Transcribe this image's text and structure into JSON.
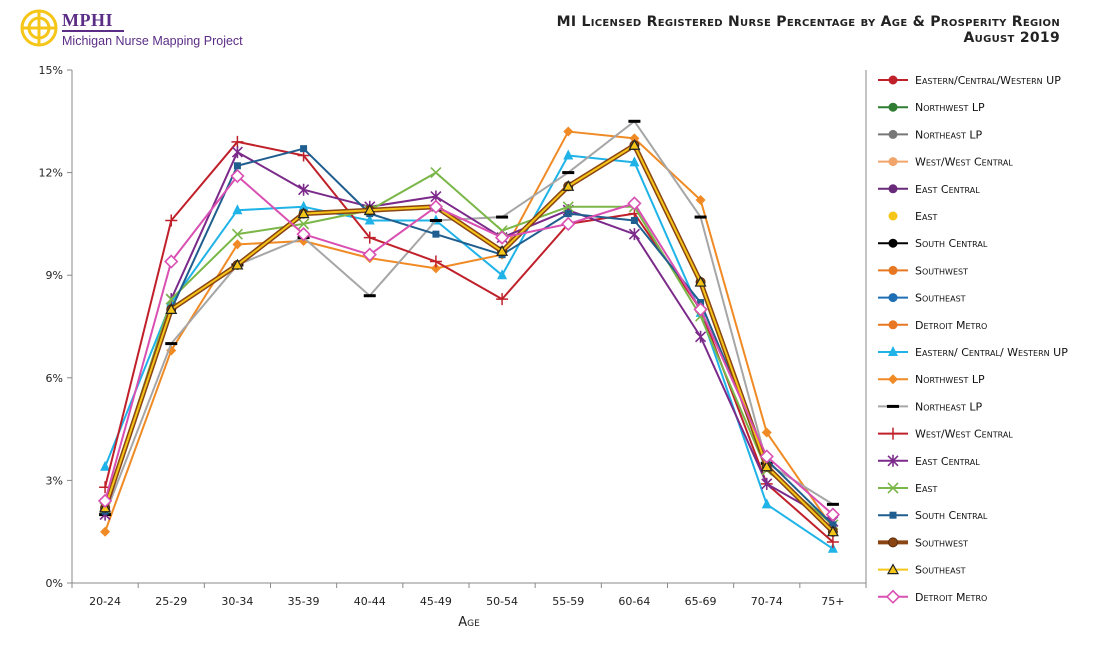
{
  "header": {
    "logo_abbr": "MPHI",
    "logo_full": "Michigan Nurse Mapping Project",
    "title_line1": "MI Licensed Registered Nurse Percentage by Age & Prosperity Region",
    "title_line2": "August 2019"
  },
  "chart_data": {
    "type": "line",
    "title": "MI Licensed Registered Nurse Percentage by Age & Prosperity Region",
    "subtitle": "August 2019",
    "xlabel": "Age",
    "ylabel": "",
    "categories": [
      "20-24",
      "25-29",
      "30-34",
      "35-39",
      "40-44",
      "45-49",
      "50-54",
      "55-59",
      "60-64",
      "65-69",
      "70-74",
      "75+"
    ],
    "ylim": [
      0,
      15
    ],
    "yticks": [
      "0%",
      "3%",
      "6%",
      "9%",
      "12%",
      "15%"
    ],
    "ytick_values": [
      0,
      3,
      6,
      9,
      12,
      15
    ],
    "grid": false,
    "legend_position": "right",
    "series": [
      {
        "name": "Eastern/Central/Western UP",
        "color": "#c0202a",
        "marker": "circle",
        "values": [
          null,
          null,
          null,
          null,
          null,
          null,
          null,
          null,
          null,
          null,
          null,
          null
        ]
      },
      {
        "name": "Northwest LP",
        "color": "#2e7d32",
        "marker": "circle",
        "values": [
          null,
          null,
          null,
          null,
          null,
          null,
          null,
          null,
          null,
          null,
          null,
          null
        ]
      },
      {
        "name": "Northeast LP",
        "color": "#777777",
        "marker": "circle",
        "values": [
          null,
          null,
          null,
          null,
          null,
          null,
          null,
          null,
          null,
          null,
          null,
          null
        ]
      },
      {
        "name": "West/West Central",
        "color": "#f2a56b",
        "marker": "circle",
        "values": [
          null,
          null,
          null,
          null,
          null,
          null,
          null,
          null,
          null,
          null,
          null,
          null
        ]
      },
      {
        "name": "East Central",
        "color": "#6a2a7a",
        "marker": "circle",
        "values": [
          null,
          null,
          null,
          null,
          null,
          null,
          null,
          null,
          null,
          null,
          null,
          null
        ]
      },
      {
        "name": "East",
        "color": "#f5c518",
        "marker": "dot",
        "values": [
          null,
          null,
          null,
          null,
          null,
          null,
          null,
          null,
          null,
          null,
          null,
          null
        ]
      },
      {
        "name": "South Central",
        "color": "#000000",
        "marker": "circle",
        "values": [
          null,
          null,
          null,
          null,
          null,
          null,
          null,
          null,
          null,
          null,
          null,
          null
        ]
      },
      {
        "name": "Southwest",
        "color": "#e87722",
        "marker": "circle",
        "values": [
          null,
          null,
          null,
          null,
          null,
          null,
          null,
          null,
          null,
          null,
          null,
          null
        ]
      },
      {
        "name": "Southeast",
        "color": "#1f6fb5",
        "marker": "circle",
        "values": [
          null,
          null,
          null,
          null,
          null,
          null,
          null,
          null,
          null,
          null,
          null,
          null
        ]
      },
      {
        "name": "Detroit Metro",
        "color": "#e87722",
        "marker": "circle",
        "values": [
          null,
          null,
          null,
          null,
          null,
          null,
          null,
          null,
          null,
          null,
          null,
          null
        ]
      },
      {
        "name": "Eastern/ Central/ Western UP",
        "color": "#1fb3e8",
        "marker": "triangle",
        "values": [
          3.4,
          8.2,
          10.9,
          11.0,
          10.6,
          10.6,
          9.0,
          12.5,
          12.3,
          7.9,
          2.3,
          1.0
        ]
      },
      {
        "name": "Northwest LP",
        "color": "#f08a24",
        "marker": "diamond",
        "values": [
          1.5,
          6.8,
          9.9,
          10.0,
          9.5,
          9.2,
          9.6,
          13.2,
          13.0,
          11.2,
          4.4,
          1.6
        ]
      },
      {
        "name": "Northeast LP",
        "color": "#a6a6a6",
        "marker": "dash",
        "values": [
          2.0,
          7.0,
          9.3,
          10.1,
          8.4,
          10.6,
          10.7,
          12.0,
          13.5,
          10.7,
          3.5,
          2.3
        ]
      },
      {
        "name": "West/West Central",
        "color": "#c0202a",
        "marker": "plus",
        "values": [
          2.8,
          10.6,
          12.9,
          12.5,
          10.1,
          9.4,
          8.3,
          10.5,
          10.8,
          8.0,
          2.9,
          1.2
        ]
      },
      {
        "name": "East Central",
        "color": "#7b2a8a",
        "marker": "star",
        "values": [
          2.0,
          8.3,
          12.6,
          11.5,
          11.0,
          11.3,
          10.1,
          10.9,
          10.2,
          7.2,
          2.9,
          1.8
        ]
      },
      {
        "name": "East",
        "color": "#7ab648",
        "marker": "x",
        "values": [
          2.2,
          8.3,
          10.2,
          10.5,
          10.9,
          12.0,
          10.3,
          11.0,
          11.0,
          7.8,
          3.3,
          1.7
        ]
      },
      {
        "name": "South Central",
        "color": "#1f5e8f",
        "marker": "square",
        "values": [
          2.1,
          8.0,
          12.2,
          12.7,
          10.8,
          10.2,
          9.6,
          10.8,
          10.6,
          8.2,
          3.6,
          1.7
        ]
      },
      {
        "name": "Southwest",
        "color": "#8b4513",
        "marker": "circle-ring",
        "values": [
          2.2,
          8.0,
          9.3,
          10.8,
          10.9,
          11.0,
          9.7,
          11.6,
          12.8,
          8.8,
          3.4,
          1.5
        ]
      },
      {
        "name": "Southeast",
        "color": "#f5c518",
        "marker": "triangle-open",
        "values": [
          2.2,
          8.0,
          9.3,
          10.8,
          10.9,
          11.0,
          9.7,
          11.6,
          12.8,
          8.8,
          3.4,
          1.5
        ]
      },
      {
        "name": "Detroit Metro",
        "color": "#d94fb2",
        "marker": "diamond-open",
        "values": [
          2.4,
          9.4,
          11.9,
          10.2,
          9.6,
          11.0,
          10.1,
          10.5,
          11.1,
          8.0,
          3.7,
          2.0
        ]
      }
    ]
  }
}
